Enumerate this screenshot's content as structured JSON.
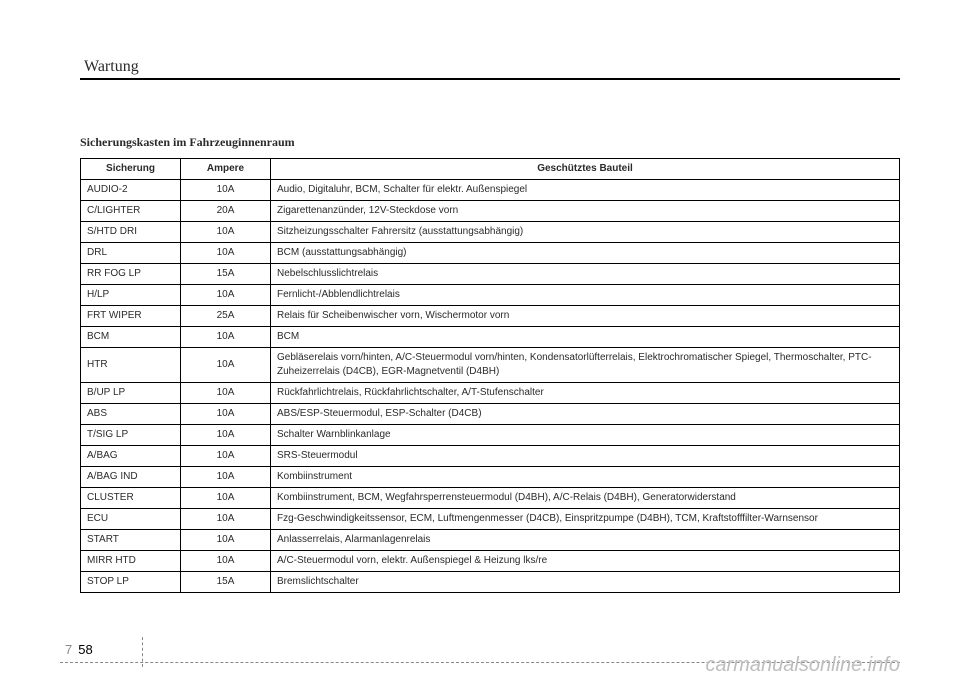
{
  "header": {
    "section": "Wartung"
  },
  "table": {
    "title": "Sicherungskasten im Fahrzeuginnenraum",
    "columns": {
      "fuse": "Sicherung",
      "ampere": "Ampere",
      "component": "Geschütztes Bauteil"
    },
    "rows": [
      {
        "fuse": "AUDIO-2",
        "amp": "10A",
        "comp": "Audio, Digitaluhr, BCM, Schalter für elektr. Außenspiegel"
      },
      {
        "fuse": "C/LIGHTER",
        "amp": "20A",
        "comp": "Zigarettenanzünder, 12V-Steckdose vorn"
      },
      {
        "fuse": "S/HTD DRI",
        "amp": "10A",
        "comp": "Sitzheizungsschalter Fahrersitz (ausstattungsabhängig)"
      },
      {
        "fuse": "DRL",
        "amp": "10A",
        "comp": "BCM (ausstattungsabhängig)"
      },
      {
        "fuse": "RR FOG LP",
        "amp": "15A",
        "comp": "Nebelschlusslichtrelais"
      },
      {
        "fuse": "H/LP",
        "amp": "10A",
        "comp": "Fernlicht-/Abblendlichtrelais"
      },
      {
        "fuse": "FRT WIPER",
        "amp": "25A",
        "comp": "Relais für Scheibenwischer vorn, Wischermotor vorn"
      },
      {
        "fuse": "BCM",
        "amp": "10A",
        "comp": "BCM"
      },
      {
        "fuse": "HTR",
        "amp": "10A",
        "comp": "Gebläserelais vorn/hinten, A/C-Steuermodul vorn/hinten, Kondensatorlüfterrelais, Elektrochromatischer Spiegel, Thermoschalter, PTC-Zuheizerrelais (D4CB), EGR-Magnetventil (D4BH)"
      },
      {
        "fuse": "B/UP LP",
        "amp": "10A",
        "comp": "Rückfahrlichtrelais, Rückfahrlichtschalter, A/T-Stufenschalter"
      },
      {
        "fuse": "ABS",
        "amp": "10A",
        "comp": "ABS/ESP-Steuermodul, ESP-Schalter (D4CB)"
      },
      {
        "fuse": "T/SIG LP",
        "amp": "10A",
        "comp": "Schalter Warnblinkanlage"
      },
      {
        "fuse": "A/BAG",
        "amp": "10A",
        "comp": "SRS-Steuermodul"
      },
      {
        "fuse": "A/BAG IND",
        "amp": "10A",
        "comp": "Kombiinstrument"
      },
      {
        "fuse": "CLUSTER",
        "amp": "10A",
        "comp": "Kombiinstrument, BCM, Wegfahrsperrensteuermodul (D4BH), A/C-Relais (D4BH), Generatorwiderstand"
      },
      {
        "fuse": "ECU",
        "amp": "10A",
        "comp": "Fzg-Geschwindigkeitssensor, ECM, Luftmengenmesser (D4CB), Einspritzpumpe (D4BH), TCM, Kraftstofffilter-Warnsensor"
      },
      {
        "fuse": "START",
        "amp": "10A",
        "comp": "Anlasserrelais, Alarmanlagenrelais"
      },
      {
        "fuse": "MIRR HTD",
        "amp": "10A",
        "comp": "A/C-Steuermodul vorn, elektr. Außenspiegel & Heizung lks/re"
      },
      {
        "fuse": "STOP LP",
        "amp": "15A",
        "comp": "Bremslichtschalter"
      }
    ]
  },
  "footer": {
    "page_chapter": "7",
    "page_number": "58",
    "watermark": "carmanualsonline.info"
  }
}
